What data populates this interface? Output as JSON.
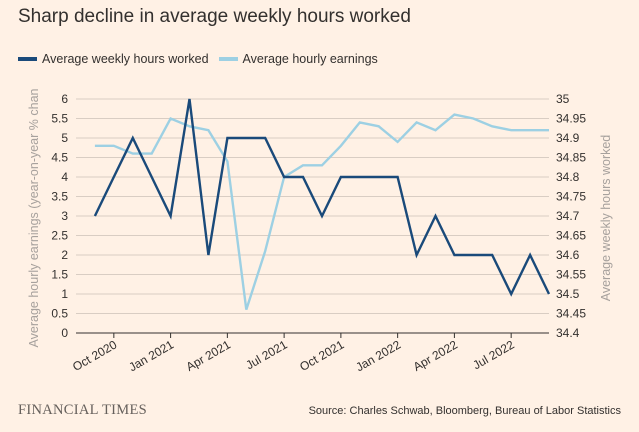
{
  "title": "Sharp decline in average weekly hours worked",
  "source": "Source: Charles Schwab, Bloomberg, Bureau of Labor Statistics",
  "brand": "FINANCIAL TIMES",
  "colors": {
    "background": "#fff1e5",
    "weekly_hours": "#1a4a7a",
    "hourly_earnings": "#9dd0e3",
    "axis_line": "#33302e",
    "grid": "#d9cdc3",
    "axis_title": "#a7a19d"
  },
  "chart_data": {
    "type": "line",
    "title": "Sharp decline in average weekly hours worked",
    "x_tick_labels": [
      "Oct 2020",
      "Jan 2021",
      "Apr 2021",
      "Jul 2021",
      "Oct 2021",
      "Jan 2022",
      "Apr 2022",
      "Jul 2022"
    ],
    "x_tick_dates": [
      "2020-10",
      "2021-01",
      "2021-04",
      "2021-07",
      "2021-10",
      "2022-01",
      "2022-04",
      "2022-07"
    ],
    "x_range": [
      "2020-08",
      "2022-09"
    ],
    "y_left": {
      "label": "Average hourly earnings (year-on-year % chan",
      "range": [
        0,
        6
      ],
      "ticks": [
        "0",
        "0.5",
        "1",
        "1.5",
        "2",
        "2.5",
        "3",
        "3.5",
        "4",
        "4.5",
        "5",
        "5.5",
        "6"
      ]
    },
    "y_right": {
      "label": "Average weekly hours worked",
      "range": [
        34.4,
        35
      ],
      "ticks": [
        "34.4",
        "34.45",
        "34.5",
        "34.55",
        "34.6",
        "34.65",
        "34.7",
        "34.75",
        "34.8",
        "34.85",
        "34.9",
        "34.95",
        "35"
      ]
    },
    "grid": "horizontal",
    "legend_position": "top-left",
    "series": [
      {
        "name": "Average weekly hours worked",
        "axis": "right",
        "dates": [
          "2020-09",
          "2020-10",
          "2020-11",
          "2020-12",
          "2021-01",
          "2021-02",
          "2021-03",
          "2021-04",
          "2021-05",
          "2021-06",
          "2021-07",
          "2021-08",
          "2021-09",
          "2021-10",
          "2021-11",
          "2021-12",
          "2022-01",
          "2022-02",
          "2022-03",
          "2022-04",
          "2022-05",
          "2022-06",
          "2022-07",
          "2022-08",
          "2022-09"
        ],
        "values": [
          34.7,
          34.8,
          34.9,
          34.8,
          34.7,
          35.0,
          34.6,
          34.9,
          34.9,
          34.9,
          34.8,
          34.8,
          34.7,
          34.8,
          34.8,
          34.8,
          34.8,
          34.6,
          34.7,
          34.6,
          34.6,
          34.6,
          34.5,
          34.6,
          34.5
        ]
      },
      {
        "name": "Average hourly earnings",
        "axis": "left",
        "dates": [
          "2020-09",
          "2020-10",
          "2020-11",
          "2020-12",
          "2021-01",
          "2021-02",
          "2021-03",
          "2021-04",
          "2021-05",
          "2021-06",
          "2021-07",
          "2021-08",
          "2021-09",
          "2021-10",
          "2021-11",
          "2021-12",
          "2022-01",
          "2022-02",
          "2022-03",
          "2022-04",
          "2022-05",
          "2022-06",
          "2022-07",
          "2022-08",
          "2022-09"
        ],
        "values": [
          4.8,
          4.8,
          4.6,
          4.6,
          5.5,
          5.3,
          5.2,
          4.4,
          0.6,
          2.1,
          4.0,
          4.3,
          4.3,
          4.8,
          5.4,
          5.3,
          4.9,
          5.4,
          5.2,
          5.6,
          5.5,
          5.3,
          5.2,
          5.2,
          5.2
        ]
      }
    ]
  }
}
